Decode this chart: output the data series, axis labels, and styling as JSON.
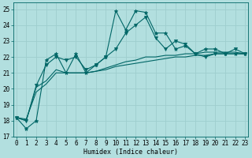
{
  "xlabel": "Humidex (Indice chaleur)",
  "xlim": [
    -0.3,
    23.3
  ],
  "ylim": [
    17,
    25.4
  ],
  "yticks": [
    17,
    18,
    19,
    20,
    21,
    22,
    23,
    24,
    25
  ],
  "xticks": [
    0,
    1,
    2,
    3,
    4,
    5,
    6,
    7,
    8,
    9,
    10,
    11,
    12,
    13,
    14,
    15,
    16,
    17,
    18,
    19,
    20,
    21,
    22,
    23
  ],
  "bg_color": "#b2dfdf",
  "grid_color": "#9ecece",
  "line_color": "#006666",
  "lines": [
    {
      "x": [
        0,
        1,
        2,
        3,
        4,
        5,
        6,
        7,
        8,
        9,
        10,
        11,
        12,
        13,
        14,
        15,
        16,
        17,
        18,
        19,
        20,
        21,
        22,
        23
      ],
      "y": [
        18.2,
        17.5,
        18.0,
        21.8,
        22.2,
        21.0,
        22.2,
        21.0,
        21.5,
        22.0,
        24.9,
        23.7,
        24.9,
        24.8,
        23.5,
        23.5,
        22.5,
        22.7,
        22.2,
        22.5,
        22.5,
        22.2,
        22.2,
        22.2
      ],
      "marker": "*",
      "markersize": 3.5,
      "lw": 0.8
    },
    {
      "x": [
        0,
        1,
        2,
        3,
        4,
        5,
        6,
        7,
        8,
        9,
        10,
        11,
        12,
        13,
        14,
        15,
        16,
        17,
        18,
        19,
        20,
        21,
        22,
        23
      ],
      "y": [
        18.2,
        18.0,
        20.2,
        21.5,
        22.0,
        21.8,
        22.0,
        21.2,
        21.5,
        22.0,
        22.5,
        23.5,
        24.0,
        24.5,
        23.2,
        22.5,
        23.0,
        22.8,
        22.2,
        22.0,
        22.2,
        22.2,
        22.5,
        22.2
      ],
      "marker": "v",
      "markersize": 3.0,
      "lw": 0.8
    },
    {
      "x": [
        0,
        1,
        2,
        3,
        4,
        5,
        6,
        7,
        8,
        9,
        10,
        11,
        12,
        13,
        14,
        15,
        16,
        17,
        18,
        19,
        20,
        21,
        22,
        23
      ],
      "y": [
        18.2,
        18.0,
        20.1,
        20.5,
        21.2,
        21.0,
        21.0,
        21.0,
        21.1,
        21.3,
        21.5,
        21.7,
        21.8,
        22.0,
        22.0,
        22.1,
        22.1,
        22.2,
        22.2,
        22.3,
        22.3,
        22.3,
        22.3,
        22.2
      ],
      "marker": null,
      "markersize": 0,
      "lw": 0.8
    },
    {
      "x": [
        0,
        1,
        2,
        3,
        4,
        5,
        6,
        7,
        8,
        9,
        10,
        11,
        12,
        13,
        14,
        15,
        16,
        17,
        18,
        19,
        20,
        21,
        22,
        23
      ],
      "y": [
        18.2,
        18.1,
        19.8,
        20.3,
        21.0,
        21.0,
        21.0,
        21.0,
        21.1,
        21.2,
        21.4,
        21.5,
        21.6,
        21.7,
        21.8,
        21.9,
        22.0,
        22.0,
        22.1,
        22.1,
        22.2,
        22.2,
        22.2,
        22.2
      ],
      "marker": null,
      "markersize": 0,
      "lw": 0.8
    }
  ],
  "xlabel_fontsize": 6,
  "tick_fontsize": 5.5
}
